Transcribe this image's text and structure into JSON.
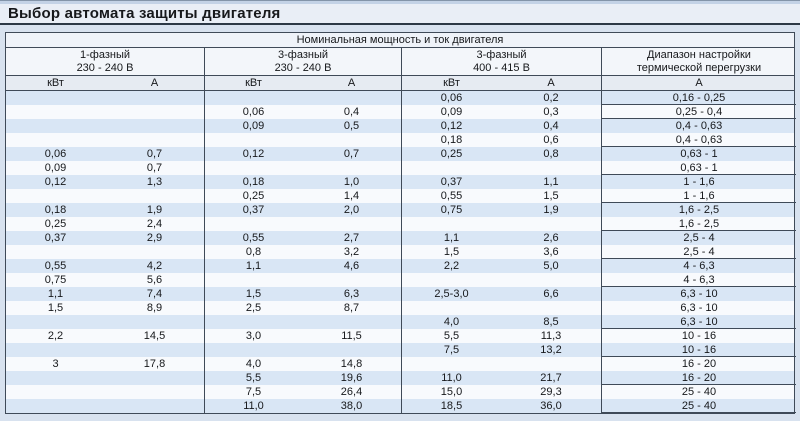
{
  "page": {
    "title": "Выбор автомата защиты двигателя"
  },
  "table": {
    "top_header": "Номинальная мощность и ток двигателя",
    "groups": [
      {
        "line1": "1-фазный",
        "line2": "230 - 240 В"
      },
      {
        "line1": "3-фазный",
        "line2": "230 - 240 В"
      },
      {
        "line1": "3-фазный",
        "line2": "400 - 415 В"
      },
      {
        "line1": "Диапазон настройки",
        "line2": "термической перегрузки"
      }
    ],
    "subheaders": [
      "кВт",
      "А",
      "кВт",
      "А",
      "кВт",
      "А",
      "А"
    ],
    "rows": [
      [
        "",
        "",
        "",
        "",
        "0,06",
        "0,2",
        "0,16 - 0,25"
      ],
      [
        "",
        "",
        "0,06",
        "0,4",
        "0,09",
        "0,3",
        "0,25 - 0,4"
      ],
      [
        "",
        "",
        "0,09",
        "0,5",
        "0,12",
        "0,4",
        "0,4 - 0,63"
      ],
      [
        "",
        "",
        "",
        "",
        "0,18",
        "0,6",
        "0,4 - 0,63"
      ],
      [
        "0,06",
        "0,7",
        "0,12",
        "0,7",
        "0,25",
        "0,8",
        "0,63 - 1"
      ],
      [
        "0,09",
        "0,7",
        "",
        "",
        "",
        "",
        "0,63 - 1"
      ],
      [
        "0,12",
        "1,3",
        "0,18",
        "1,0",
        "0,37",
        "1,1",
        "1 - 1,6"
      ],
      [
        "",
        "",
        "0,25",
        "1,4",
        "0,55",
        "1,5",
        "1 - 1,6"
      ],
      [
        "0,18",
        "1,9",
        "0,37",
        "2,0",
        "0,75",
        "1,9",
        "1,6 - 2,5"
      ],
      [
        "0,25",
        "2,4",
        "",
        "",
        "",
        "",
        "1,6 - 2,5"
      ],
      [
        "0,37",
        "2,9",
        "0,55",
        "2,7",
        "1,1",
        "2,6",
        "2,5 - 4"
      ],
      [
        "",
        "",
        "0,8",
        "3,2",
        "1,5",
        "3,6",
        "2,5 - 4"
      ],
      [
        "0,55",
        "4,2",
        "1,1",
        "4,6",
        "2,2",
        "5,0",
        "4 - 6,3"
      ],
      [
        "0,75",
        "5,6",
        "",
        "",
        "",
        "",
        "4 - 6,3"
      ],
      [
        "1,1",
        "7,4",
        "1,5",
        "6,3",
        "2,5-3,0",
        "6,6",
        "6,3 - 10"
      ],
      [
        "1,5",
        "8,9",
        "2,5",
        "8,7",
        "",
        "",
        "6,3 - 10"
      ],
      [
        "",
        "",
        "",
        "",
        "4,0",
        "8,5",
        "6,3 - 10"
      ],
      [
        "2,2",
        "14,5",
        "3,0",
        "11,5",
        "5,5",
        "11,3",
        "10 - 16"
      ],
      [
        "",
        "",
        "",
        "",
        "7,5",
        "13,2",
        "10 - 16"
      ],
      [
        "3",
        "17,8",
        "4,0",
        "14,8",
        "",
        "",
        "16 - 20"
      ],
      [
        "",
        "",
        "5,5",
        "19,6",
        "11,0",
        "21,7",
        "16 - 20"
      ],
      [
        "",
        "",
        "7,5",
        "26,4",
        "15,0",
        "29,3",
        "25 - 40"
      ],
      [
        "",
        "",
        "11,0",
        "38,0",
        "18,5",
        "36,0",
        "25 - 40"
      ]
    ]
  },
  "colors": {
    "border_dark": "#3f4a58",
    "title_rule": "#2c3845",
    "stripe_blue": "#d9e6f5",
    "stripe_white": "#f8fafd",
    "header_top_bg": "#eff3f9",
    "header_group_bg": "#f3f6fa",
    "header_sub_bg": "#e6ebf2",
    "page_bg": "#d8e2ef",
    "title_bg": "#e9eef6",
    "top_accent_dark": "#8394a9",
    "top_accent_light": "#c3d2e6",
    "text": "#16181b"
  }
}
